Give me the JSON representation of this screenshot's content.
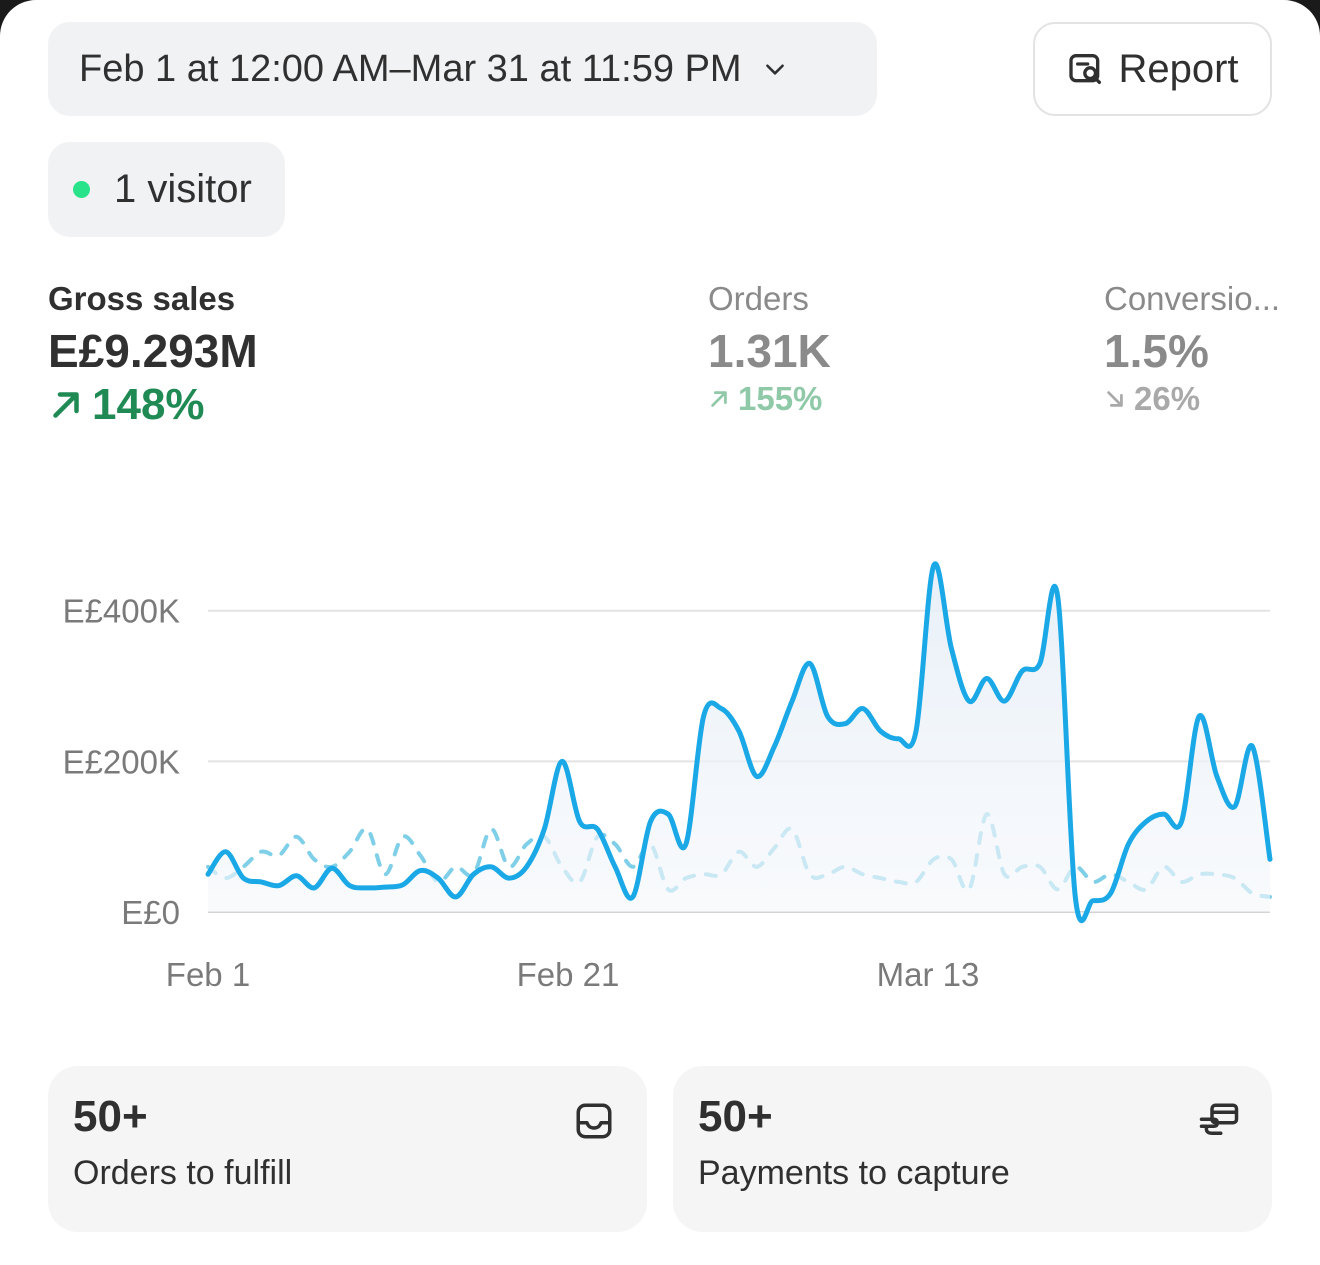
{
  "header": {
    "date_range_label": "Feb 1 at 12:00 AM–Mar 31 at 11:59 PM",
    "report_label": "Report"
  },
  "visitors": {
    "label": "1 visitor",
    "dot_color": "#29e38b"
  },
  "metrics": [
    {
      "label": "Gross sales",
      "value": "E£9.293M",
      "delta": "148%",
      "direction": "up",
      "color": "#1f8a54"
    },
    {
      "label": "Orders",
      "value": "1.31K",
      "delta": "155%",
      "direction": "up",
      "color": "#8fc9a8"
    },
    {
      "label": "Conversio...",
      "value": "1.5%",
      "delta": "26%",
      "direction": "down",
      "color": "#a9a9a9"
    }
  ],
  "chart_data": {
    "type": "line",
    "x_tick_labels": [
      "Feb 1",
      "Feb 21",
      "Mar 13"
    ],
    "y_tick_labels": [
      "E£0",
      "E£200K",
      "E£400K"
    ],
    "y_ticks": [
      0,
      200000,
      400000
    ],
    "ylim": [
      0,
      470000
    ],
    "x_days": 59,
    "grid": true,
    "series": [
      {
        "style": "solid",
        "color": "#1aa8e6",
        "values": [
          50000,
          80000,
          45000,
          40000,
          35000,
          48000,
          32000,
          58000,
          35000,
          32000,
          33000,
          36000,
          55000,
          45000,
          20000,
          50000,
          60000,
          45000,
          60000,
          110000,
          200000,
          120000,
          110000,
          60000,
          20000,
          120000,
          130000,
          90000,
          260000,
          270000,
          240000,
          180000,
          220000,
          280000,
          330000,
          260000,
          250000,
          270000,
          240000,
          230000,
          240000,
          460000,
          350000,
          280000,
          310000,
          280000,
          320000,
          330000,
          420000,
          20000,
          15000,
          25000,
          90000,
          120000,
          130000,
          120000,
          260000,
          180000,
          140000,
          220000,
          70000
        ]
      },
      {
        "style": "dashed",
        "color": "#7fcfe8",
        "values": [
          60000,
          45000,
          60000,
          80000,
          75000,
          100000,
          70000,
          60000,
          80000,
          110000,
          50000,
          100000,
          75000,
          40000,
          60000,
          50000,
          110000,
          60000,
          90000,
          100000,
          60000,
          40000,
          100000,
          90000,
          60000,
          90000,
          30000,
          45000,
          50000,
          50000,
          80000,
          60000,
          85000,
          110000,
          50000,
          50000,
          60000,
          50000,
          45000,
          40000,
          40000,
          70000,
          70000,
          30000,
          130000,
          50000,
          60000,
          60000,
          30000,
          60000,
          40000,
          50000,
          40000,
          30000,
          60000,
          40000,
          50000,
          50000,
          45000,
          25000,
          20000
        ]
      }
    ]
  },
  "cards": [
    {
      "count": "50+",
      "caption": "Orders to fulfill",
      "icon": "inbox-icon"
    },
    {
      "count": "50+",
      "caption": "Payments to capture",
      "icon": "hand-card-icon"
    }
  ]
}
